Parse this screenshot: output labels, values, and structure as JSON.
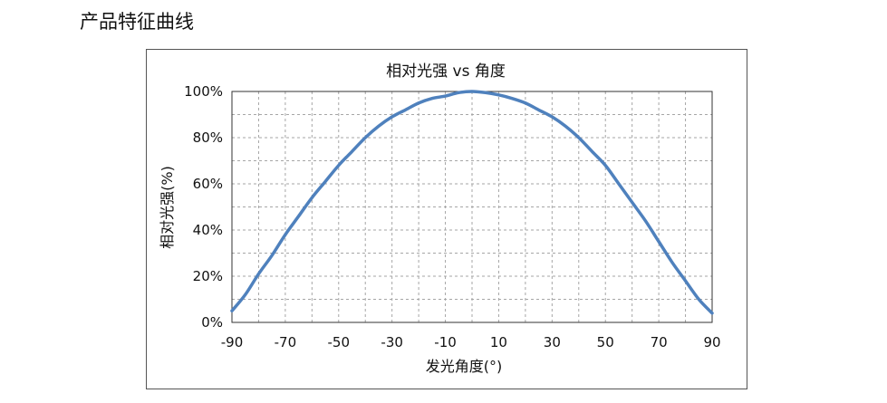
{
  "page": {
    "section_title": "产品特征曲线"
  },
  "colors": {
    "series": "#4f81bd",
    "grid": "#a6a6a6",
    "frame": "#555555"
  },
  "chart_data": {
    "type": "line",
    "title": "相对光强 vs 角度",
    "xlabel": "发光角度(°)",
    "ylabel": "相对光强(%)",
    "xlim": [
      -90,
      90
    ],
    "ylim": [
      0,
      100
    ],
    "x_ticks": [
      -90,
      -70,
      -50,
      -30,
      -10,
      10,
      30,
      50,
      70,
      90
    ],
    "x_tick_labels": [
      "-90",
      "-70",
      "-50",
      "-30",
      "-10",
      "10",
      "30",
      "50",
      "70",
      "90"
    ],
    "y_ticks": [
      0,
      20,
      40,
      60,
      80,
      100
    ],
    "y_tick_labels": [
      "0%",
      "20%",
      "40%",
      "60%",
      "80%",
      "100%"
    ],
    "grid": true,
    "grid_x_step": 10,
    "grid_y_step": 10,
    "legend": "none",
    "series": [
      {
        "x": [
          -90,
          -85,
          -80,
          -75,
          -70,
          -65,
          -60,
          -55,
          -50,
          -45,
          -40,
          -35,
          -30,
          -25,
          -20,
          -15,
          -10,
          -5,
          0,
          5,
          10,
          15,
          20,
          25,
          30,
          35,
          40,
          45,
          50,
          55,
          60,
          65,
          70,
          75,
          80,
          85,
          90
        ],
        "y": [
          5,
          12,
          21,
          29,
          38,
          46,
          54,
          61,
          68,
          74,
          80,
          85,
          89,
          92,
          95,
          97,
          98,
          99.5,
          100,
          99.5,
          98.5,
          97,
          95,
          92,
          89,
          85,
          80,
          74,
          68,
          60,
          52,
          44,
          35,
          26,
          18,
          10,
          4
        ]
      }
    ]
  }
}
